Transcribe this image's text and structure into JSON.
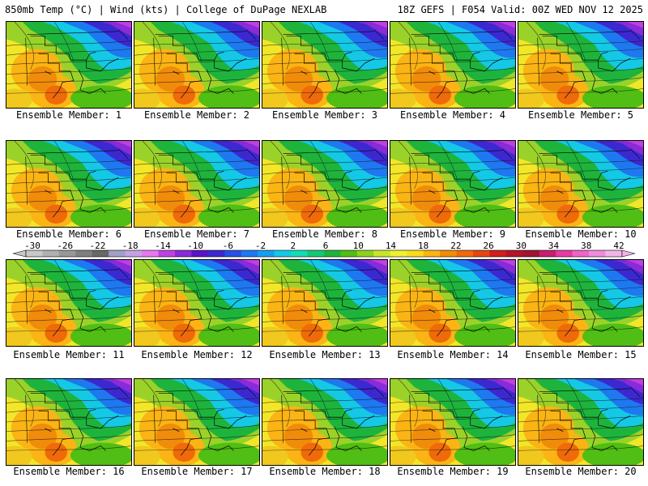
{
  "header": {
    "left": "850mb Temp (°C) | Wind (kts) | College of DuPage NEXLAB",
    "right": "18Z GEFS | F054 Valid: 00Z WED NOV 12 2025"
  },
  "panels": [
    {
      "label": "Ensemble Member: 1"
    },
    {
      "label": "Ensemble Member: 2"
    },
    {
      "label": "Ensemble Member: 3"
    },
    {
      "label": "Ensemble Member: 4"
    },
    {
      "label": "Ensemble Member: 5"
    },
    {
      "label": "Ensemble Member: 6"
    },
    {
      "label": "Ensemble Member: 7"
    },
    {
      "label": "Ensemble Member: 8"
    },
    {
      "label": "Ensemble Member: 9"
    },
    {
      "label": "Ensemble Member: 10"
    },
    {
      "label": "Ensemble Member: 11"
    },
    {
      "label": "Ensemble Member: 12"
    },
    {
      "label": "Ensemble Member: 13"
    },
    {
      "label": "Ensemble Member: 14"
    },
    {
      "label": "Ensemble Member: 15"
    },
    {
      "label": "Ensemble Member: 16"
    },
    {
      "label": "Ensemble Member: 17"
    },
    {
      "label": "Ensemble Member: 18"
    },
    {
      "label": "Ensemble Member: 19"
    },
    {
      "label": "Ensemble Member: 20"
    }
  ],
  "colorbar": {
    "ticks": [
      "-30",
      "-26",
      "-22",
      "-18",
      "-14",
      "-10",
      "-6",
      "-2",
      "2",
      "6",
      "10",
      "14",
      "18",
      "22",
      "26",
      "30",
      "34",
      "38",
      "42"
    ],
    "colors": [
      "#c8c8c8",
      "#b0b0b0",
      "#989898",
      "#808080",
      "#686868",
      "#a0a0c8",
      "#c8a0e6",
      "#e678f0",
      "#c040e0",
      "#8a2ad8",
      "#5a14c8",
      "#3c28d0",
      "#2850e6",
      "#1e78f0",
      "#14a0f0",
      "#14c8e6",
      "#14dcb4",
      "#14c878",
      "#1eb43c",
      "#50be14",
      "#8cd21e",
      "#c8e628",
      "#f0f032",
      "#fadc1e",
      "#fab414",
      "#f08c0a",
      "#ee6a0a",
      "#e64614",
      "#d21e1e",
      "#b41428",
      "#a01432",
      "#c81e6e",
      "#e63ca0",
      "#f064c8",
      "#f08cdc",
      "#f4b4e8"
    ]
  }
}
